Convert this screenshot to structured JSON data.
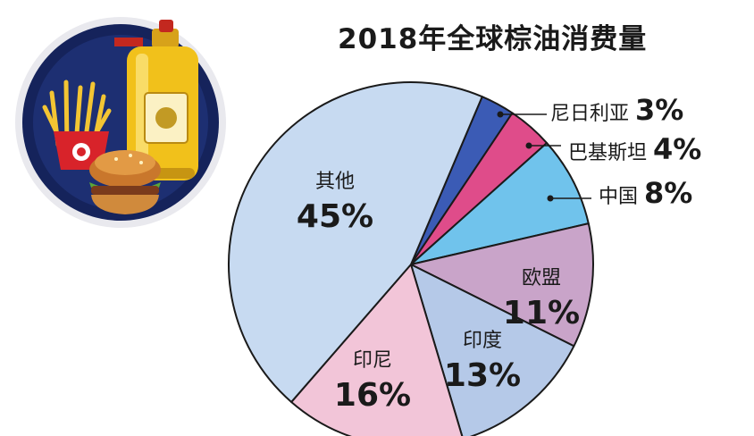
{
  "title": "2018年全球棕油消费量",
  "chart_data": {
    "type": "pie",
    "title": "2018年全球棕油消费量",
    "unit": "%",
    "slices": [
      {
        "label": "尼日利亚",
        "value": 3,
        "value_text": "3%",
        "color": "#3b5bb5",
        "placement": "external"
      },
      {
        "label": "巴基斯坦",
        "value": 4,
        "value_text": "4%",
        "color": "#df4c8a",
        "placement": "external"
      },
      {
        "label": "中国",
        "value": 8,
        "value_text": "8%",
        "color": "#70c3ec",
        "placement": "external"
      },
      {
        "label": "欧盟",
        "value": 11,
        "value_text": "11%",
        "color": "#c9a4c9",
        "placement": "inside"
      },
      {
        "label": "印度",
        "value": 13,
        "value_text": "13%",
        "color": "#b5c9e8",
        "placement": "inside"
      },
      {
        "label": "印尼",
        "value": 16,
        "value_text": "16%",
        "color": "#f2c5d8",
        "placement": "inside"
      },
      {
        "label": "其他",
        "value": 45,
        "value_text": "45%",
        "color": "#c7daf1",
        "placement": "inside"
      }
    ]
  }
}
